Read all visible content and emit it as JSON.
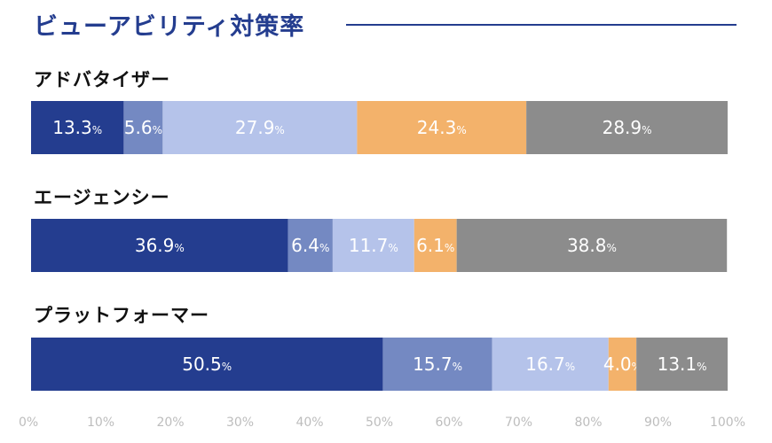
{
  "title": "ビューアビリティ対策率",
  "chart_data": {
    "type": "bar",
    "orientation": "horizontal-stacked-100",
    "categories": [
      "アドバタイザー",
      "エージェンシー",
      "プラットフォーマー"
    ],
    "series": [
      {
        "values": [
          13.3,
          36.9,
          50.5
        ],
        "color": "#243d8f"
      },
      {
        "values": [
          5.6,
          6.4,
          15.7
        ],
        "color": "#7489c2"
      },
      {
        "values": [
          27.9,
          11.7,
          16.7
        ],
        "color": "#b5c3ea"
      },
      {
        "values": [
          24.3,
          6.1,
          4.0
        ],
        "color": "#f3b26b"
      },
      {
        "values": [
          28.9,
          38.8,
          13.1
        ],
        "color": "#8c8c8c"
      }
    ],
    "value_suffix": "%",
    "xlim": [
      0,
      100
    ],
    "xticks": [
      "0%",
      "10%",
      "20%",
      "30%",
      "40%",
      "50%",
      "60%",
      "70%",
      "80%",
      "90%",
      "100%"
    ],
    "grid": false,
    "legend": "none"
  }
}
